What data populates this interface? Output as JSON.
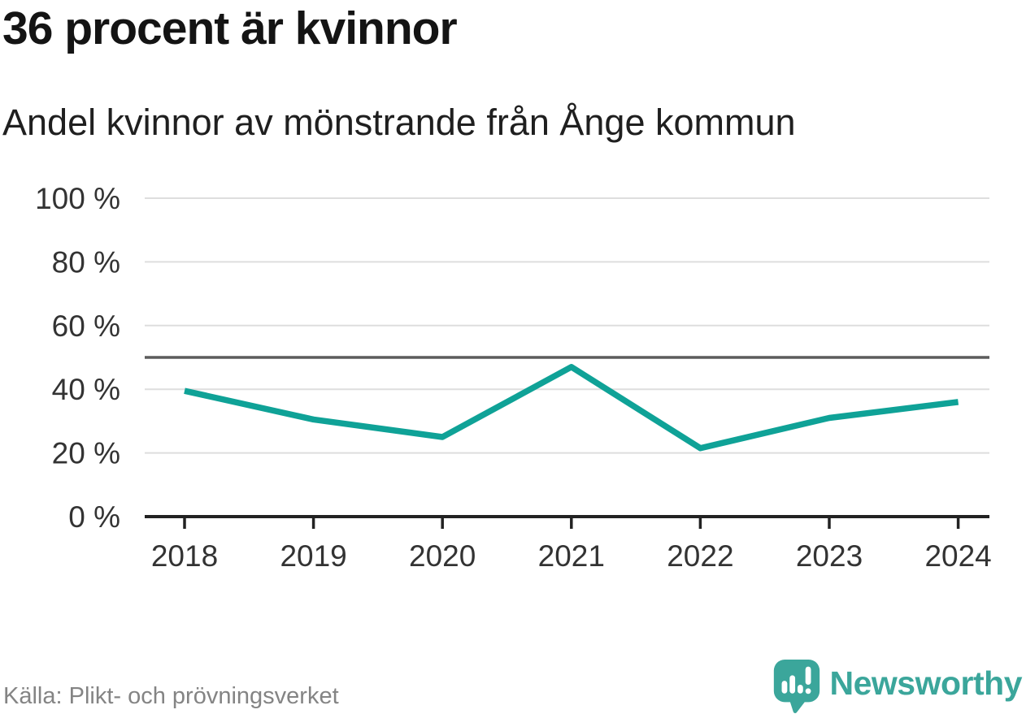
{
  "chart_data": {
    "type": "line",
    "title": "36 procent är kvinnor",
    "subtitle": "Andel kvinnor av mönstrande från Ånge kommun",
    "x": [
      "2018",
      "2019",
      "2020",
      "2021",
      "2022",
      "2023",
      "2024"
    ],
    "series": [
      {
        "name": "Andel kvinnor av mönstrande",
        "values": [
          39.5,
          30.5,
          25,
          47,
          21.5,
          31,
          36
        ]
      }
    ],
    "ylim": [
      0,
      100
    ],
    "yticks": [
      0,
      20,
      40,
      60,
      80,
      100
    ],
    "ytick_labels": [
      "0 %",
      "20 %",
      "40 %",
      "60 %",
      "80 %",
      "100 %"
    ],
    "reference_line": 50,
    "grid": "horizontal-only",
    "legend": "none",
    "line_color": "#0fa297",
    "reference_line_color": "#5c5c5c",
    "gridline_color": "#dedede",
    "axis_color": "#222222",
    "tick_label_color": "#333333"
  },
  "footer": {
    "source_label": "Källa: Plikt- och prövningsverket",
    "brand_name": "Newsworthy",
    "brand_color": "#3ba69b",
    "logo_icon": "speech-bubble-bar-chart-icon"
  }
}
